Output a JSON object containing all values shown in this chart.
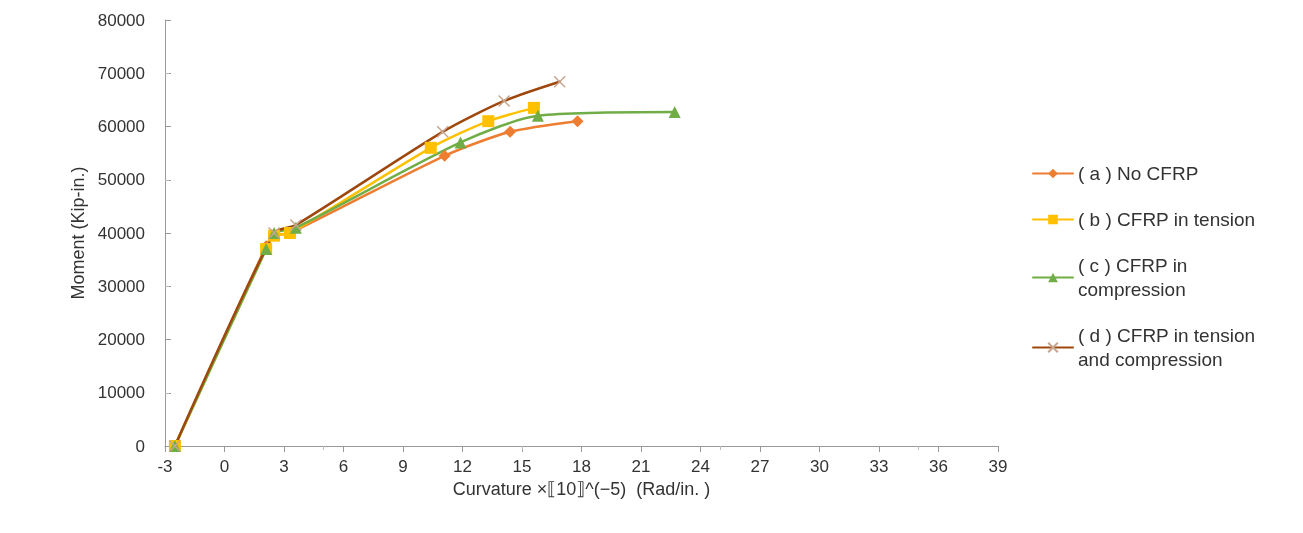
{
  "chart_data": {
    "type": "line",
    "xlabel": "Curvature ×⟦10⟧^(−5)  (Rad/in. )",
    "ylabel": "Moment (Kip-in.)",
    "xlim": [
      -3,
      39
    ],
    "xticks": [
      -3,
      0,
      3,
      6,
      9,
      12,
      15,
      18,
      21,
      24,
      27,
      30,
      33,
      36,
      39
    ],
    "ylim": [
      0,
      80000
    ],
    "yticks": [
      0,
      10000,
      20000,
      30000,
      40000,
      50000,
      60000,
      70000,
      80000
    ],
    "grid": false,
    "legend": "right",
    "series": [
      {
        "name": "( a ) No CFRP",
        "color": "#ed7d31",
        "marker": "diamond",
        "x": [
          -2.5,
          2.1,
          2.5,
          3.3,
          11.1,
          14.4,
          17.8
        ],
        "values": [
          0,
          37500,
          39500,
          40000,
          54500,
          59000,
          61000
        ]
      },
      {
        "name": "( b ) CFRP in tension",
        "color": "#ffc000",
        "marker": "square",
        "x": [
          -2.5,
          2.1,
          2.5,
          3.3,
          10.4,
          13.3,
          15.6
        ],
        "values": [
          0,
          37000,
          39500,
          40000,
          56000,
          61000,
          63500
        ]
      },
      {
        "name": "( c ) CFRP in compression",
        "color": "#70ad47",
        "marker": "triangle",
        "x": [
          -2.5,
          2.1,
          2.5,
          3.6,
          11.9,
          15.8,
          22.7
        ],
        "values": [
          0,
          37000,
          40000,
          41000,
          57000,
          62000,
          62700
        ]
      },
      {
        "name": "( d ) CFRP in tension and compression",
        "color": "#9e480e",
        "marker": "cross",
        "x": [
          -2.5,
          2.5,
          3.6,
          11.0,
          14.1,
          16.9
        ],
        "values": [
          0,
          40000,
          41500,
          59000,
          64800,
          68400
        ]
      }
    ]
  }
}
